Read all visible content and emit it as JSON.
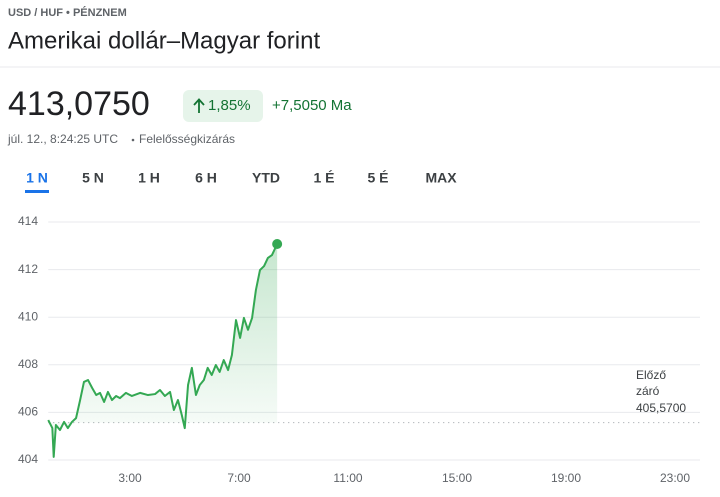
{
  "header": {
    "category": "USD / HUF • PÉNZNEM",
    "title": "Amerikai dollár–Magyar forint"
  },
  "quote": {
    "price": "413,0750",
    "change_percent": "1,85%",
    "change": "+7,5050 Ma",
    "timestamp": "júl. 12., 8:24:25 UTC",
    "disclaimer": "Felelősségkizárás"
  },
  "tabs": [
    "1 N",
    "5 N",
    "1 H",
    "6 H",
    "YTD",
    "1 É",
    "5 É",
    "MAX"
  ],
  "active_tab": 0,
  "chart_data": {
    "type": "line",
    "color": "#34a853",
    "x": [
      0.0,
      0.15,
      0.2,
      0.28,
      0.43,
      0.58,
      0.72,
      0.87,
      1.02,
      1.17,
      1.31,
      1.46,
      1.61,
      1.76,
      1.9,
      2.05,
      2.19,
      2.34,
      2.49,
      2.63,
      2.85,
      3.07,
      3.37,
      3.66,
      3.92,
      4.1,
      4.28,
      4.47,
      4.61,
      4.76,
      4.9,
      5.01,
      5.13,
      5.27,
      5.42,
      5.56,
      5.71,
      5.85,
      6.0,
      6.15,
      6.29,
      6.44,
      6.6,
      6.74,
      6.89,
      7.04,
      7.18,
      7.33,
      7.48,
      7.62,
      7.77,
      7.92,
      8.06,
      8.21,
      8.4
    ],
    "values": [
      405.68,
      405.34,
      404.13,
      405.47,
      405.26,
      405.6,
      405.34,
      405.6,
      405.76,
      406.52,
      407.28,
      407.36,
      407.03,
      406.73,
      406.82,
      406.44,
      406.86,
      406.52,
      406.69,
      406.6,
      406.82,
      406.69,
      406.82,
      406.73,
      406.77,
      406.94,
      406.69,
      406.86,
      406.1,
      406.52,
      405.89,
      405.34,
      407.15,
      407.87,
      406.73,
      407.15,
      407.36,
      407.87,
      407.57,
      407.99,
      407.7,
      408.2,
      407.78,
      408.41,
      409.88,
      409.13,
      409.97,
      409.47,
      409.97,
      411.14,
      411.98,
      412.15,
      412.49,
      412.61,
      413.075
    ],
    "xlim": [
      0,
      24
    ],
    "xticks": [
      {
        "value": 3,
        "label": "3:00"
      },
      {
        "value": 7,
        "label": "7:00"
      },
      {
        "value": 11,
        "label": "11:00"
      },
      {
        "value": 15,
        "label": "15:00"
      },
      {
        "value": 19,
        "label": "19:00"
      },
      {
        "value": 23,
        "label": "23:00"
      }
    ],
    "ylim": [
      404,
      414
    ],
    "yticks": [
      404,
      406,
      408,
      410,
      412,
      414
    ],
    "grid": true,
    "reference_line": {
      "value": 405.57,
      "label": [
        "Előző",
        "záró"
      ],
      "value_label": "405,5700"
    }
  }
}
